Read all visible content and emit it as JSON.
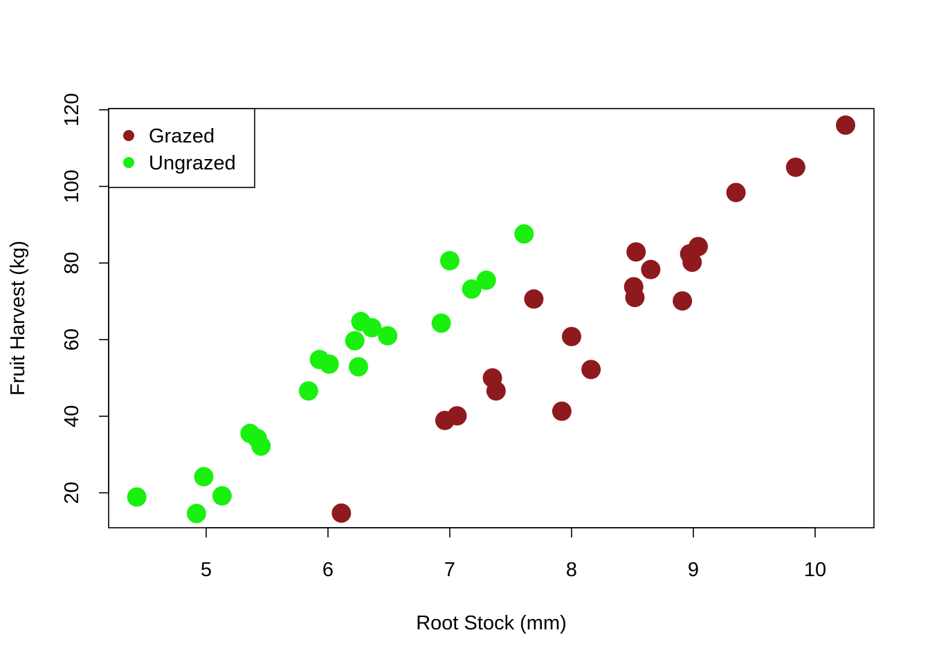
{
  "chart_data": {
    "type": "scatter",
    "title": "",
    "xlabel": "Root Stock (mm)",
    "ylabel": "Fruit Harvest (kg)",
    "xlim": [
      4.2,
      10.5
    ],
    "ylim": [
      11,
      120
    ],
    "x_ticks": [
      "5",
      "6",
      "7",
      "8",
      "9",
      "10"
    ],
    "y_ticks": [
      "20",
      "40",
      "60",
      "80",
      "100",
      "120"
    ],
    "grid": false,
    "legend_position": "top-left",
    "series": [
      {
        "name": "Grazed",
        "color": "#8E1A1E",
        "points": [
          [
            6.11,
            14.7
          ],
          [
            6.96,
            38.9
          ],
          [
            7.06,
            40.1
          ],
          [
            7.35,
            50.0
          ],
          [
            7.38,
            46.6
          ],
          [
            7.69,
            70.6
          ],
          [
            7.92,
            41.3
          ],
          [
            8.0,
            60.8
          ],
          [
            8.16,
            52.2
          ],
          [
            8.51,
            73.8
          ],
          [
            8.52,
            71.0
          ],
          [
            8.53,
            82.9
          ],
          [
            8.65,
            78.3
          ],
          [
            8.91,
            70.1
          ],
          [
            8.97,
            82.4
          ],
          [
            8.99,
            80.2
          ],
          [
            9.04,
            84.3
          ],
          [
            9.35,
            98.4
          ],
          [
            9.84,
            105.0
          ],
          [
            10.25,
            116.0
          ]
        ]
      },
      {
        "name": "Ungrazed",
        "color": "#1AF00F",
        "points": [
          [
            4.43,
            18.9
          ],
          [
            4.92,
            14.6
          ],
          [
            4.98,
            24.2
          ],
          [
            5.13,
            19.2
          ],
          [
            5.36,
            35.5
          ],
          [
            5.42,
            34.2
          ],
          [
            5.45,
            32.2
          ],
          [
            5.84,
            46.6
          ],
          [
            5.93,
            54.8
          ],
          [
            6.01,
            53.6
          ],
          [
            6.22,
            59.7
          ],
          [
            6.25,
            52.9
          ],
          [
            6.27,
            64.7
          ],
          [
            6.36,
            63.1
          ],
          [
            6.49,
            61.0
          ],
          [
            6.93,
            64.3
          ],
          [
            7.0,
            80.6
          ],
          [
            7.18,
            73.2
          ],
          [
            7.3,
            75.5
          ],
          [
            7.61,
            87.6
          ]
        ]
      }
    ]
  }
}
